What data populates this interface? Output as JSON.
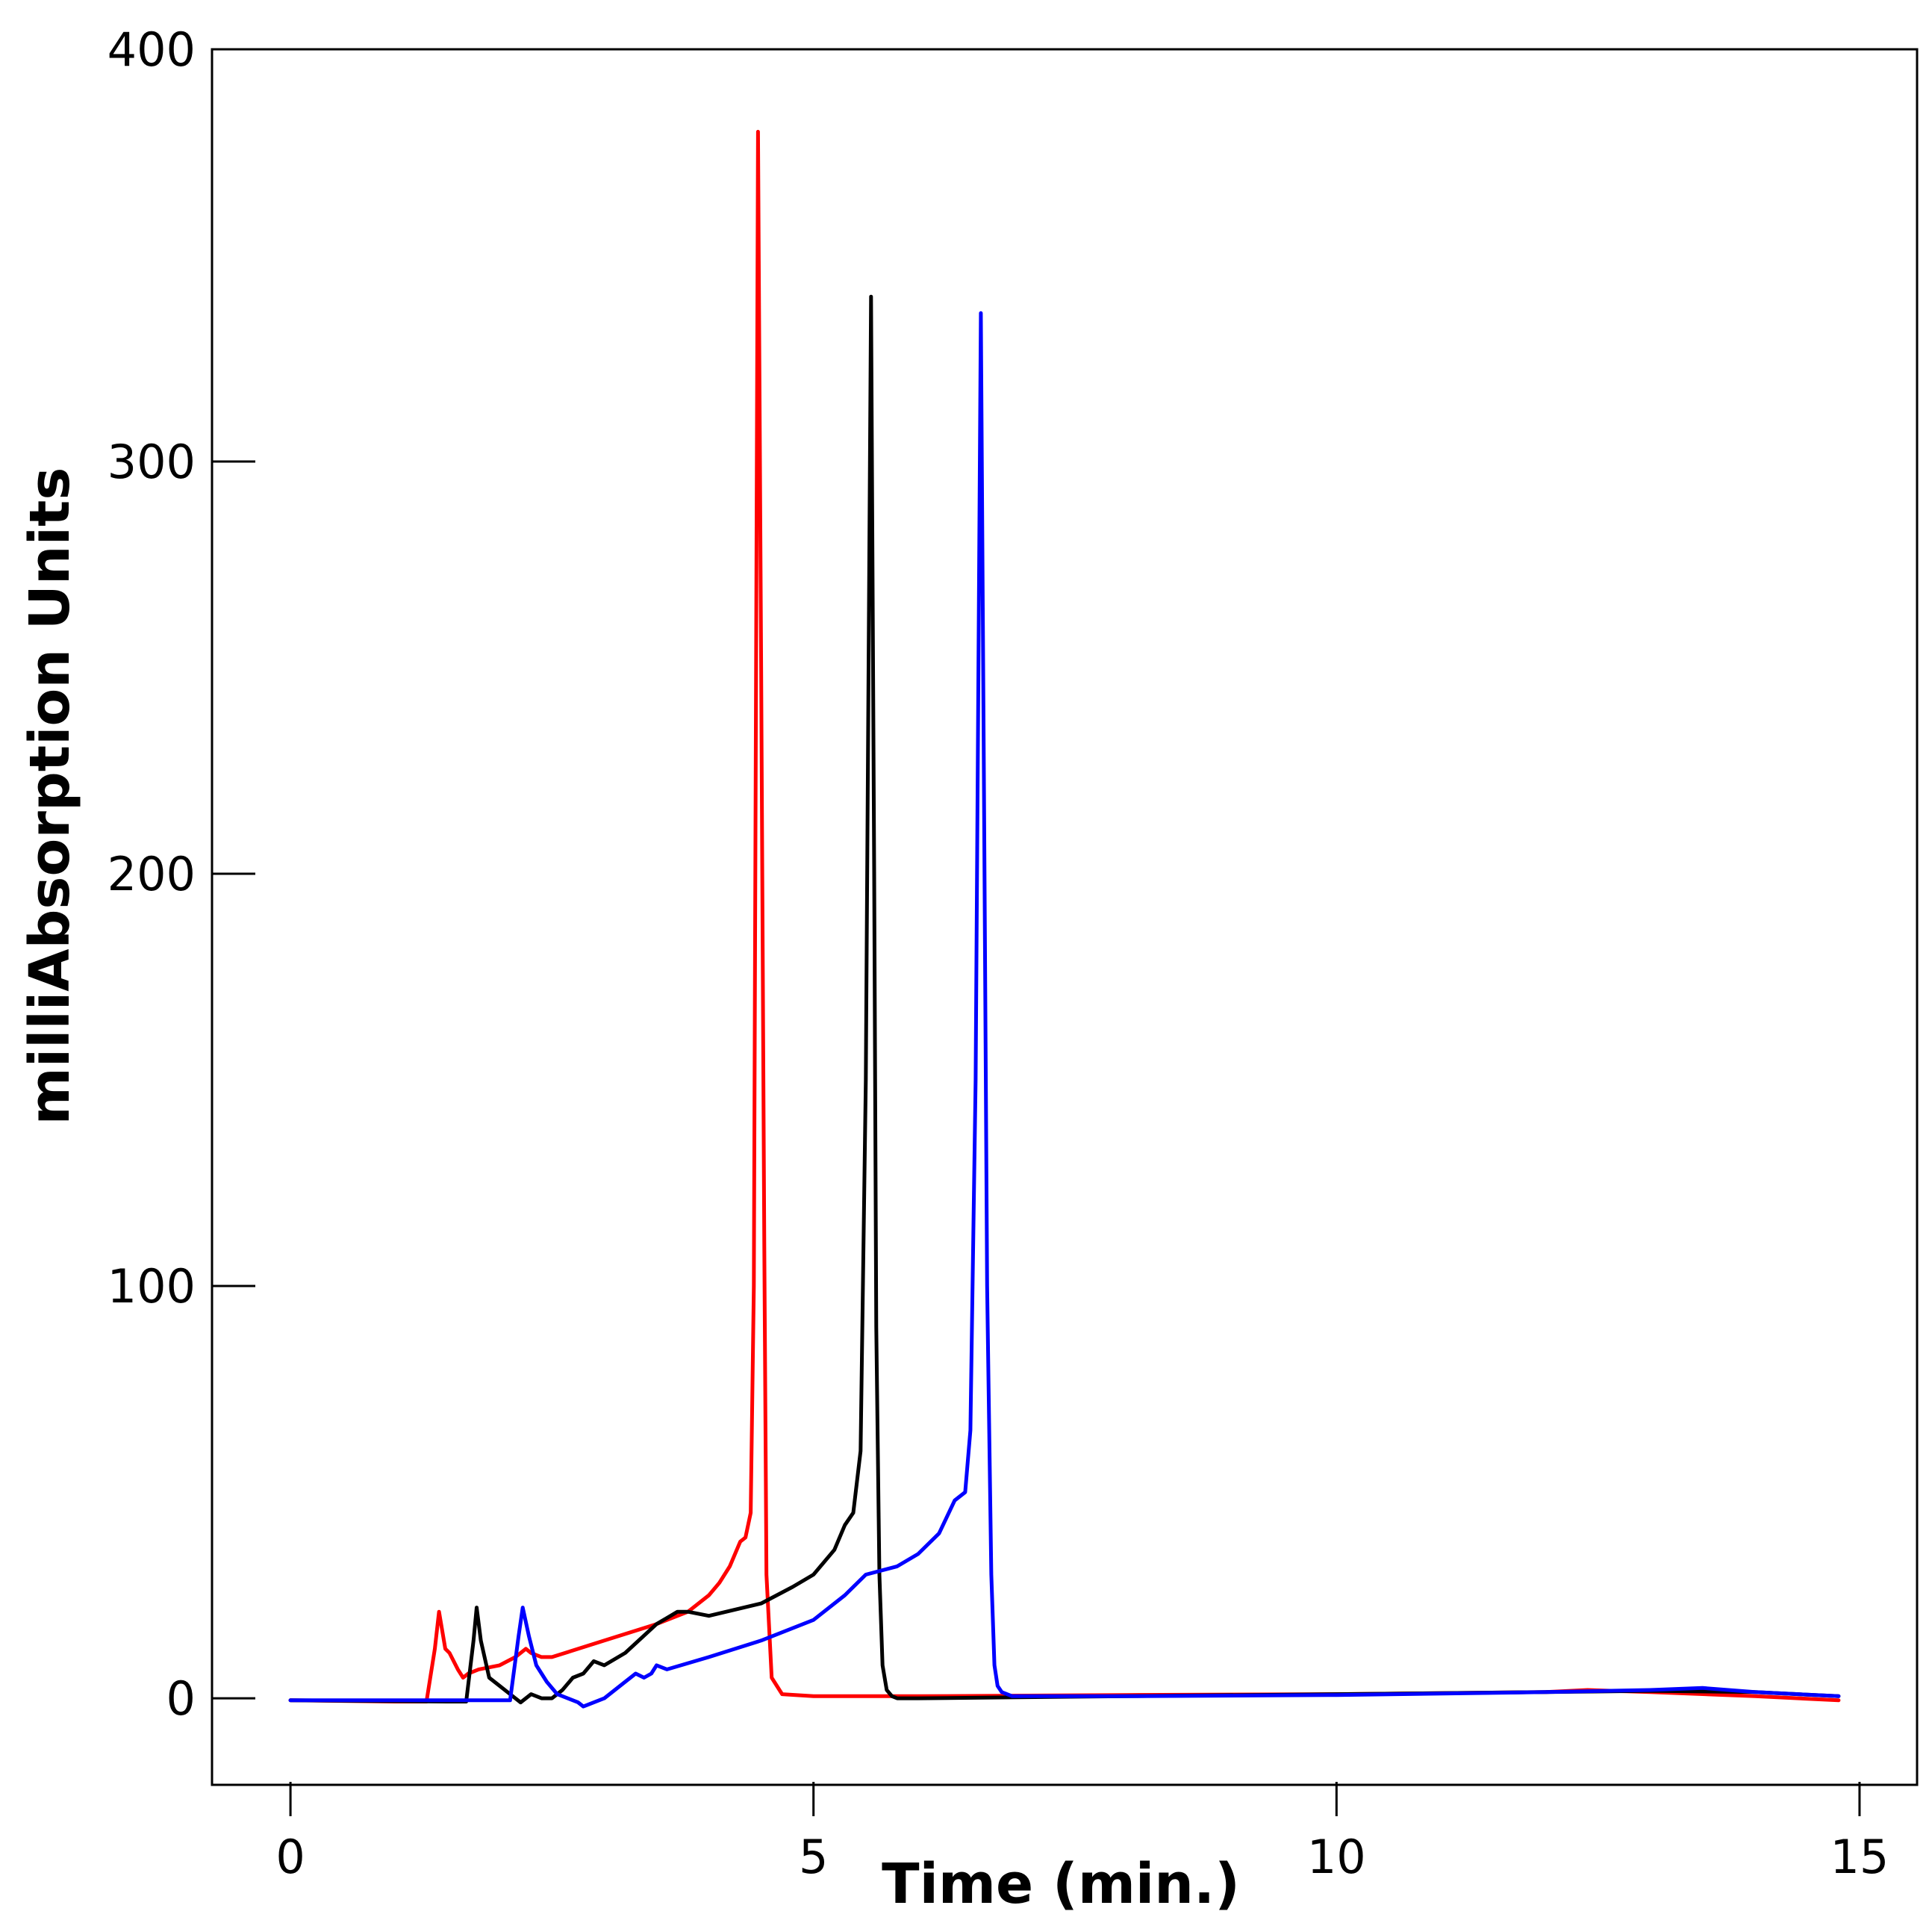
{
  "chart_data": {
    "type": "line",
    "title": "",
    "xlabel": "Time (min.)",
    "ylabel": "milliAbsorption Units",
    "xlim": [
      -0.75,
      15.55
    ],
    "ylim": [
      -21,
      400
    ],
    "xticks": [
      0,
      5,
      10,
      15
    ],
    "yticks": [
      0,
      100,
      200,
      300,
      400
    ],
    "grid": false,
    "legend": "none",
    "series": [
      {
        "color": "#ff0000",
        "x": [
          0,
          1.0,
          1.3,
          1.38,
          1.42,
          1.48,
          1.52,
          1.6,
          1.65,
          1.7,
          1.8,
          2.0,
          2.15,
          2.25,
          2.3,
          2.4,
          2.5,
          3.0,
          3.5,
          3.8,
          4.0,
          4.1,
          4.2,
          4.3,
          4.35,
          4.4,
          4.43,
          4.45,
          4.47,
          4.5,
          4.53,
          4.55,
          4.6,
          4.7,
          5.0,
          6.0,
          8.0,
          10.0,
          12.0,
          12.4,
          13.0,
          14.0,
          14.8
        ],
        "y": [
          -0.5,
          -0.8,
          -0.8,
          12,
          21,
          12,
          11,
          7,
          5,
          6,
          7,
          8,
          10,
          12,
          11,
          10,
          10,
          14,
          18,
          21,
          25,
          28,
          32,
          38,
          39,
          45,
          100,
          240,
          380,
          250,
          110,
          30,
          5,
          1,
          0.5,
          0.5,
          0.8,
          1.0,
          1.5,
          2,
          1.5,
          0.5,
          -0.5
        ]
      },
      {
        "color": "#000000",
        "x": [
          0,
          1.5,
          1.68,
          1.75,
          1.78,
          1.82,
          1.9,
          2.0,
          2.1,
          2.2,
          2.3,
          2.4,
          2.5,
          2.6,
          2.7,
          2.8,
          2.9,
          3.0,
          3.2,
          3.5,
          3.7,
          3.8,
          4.0,
          4.5,
          4.8,
          5.0,
          5.2,
          5.3,
          5.38,
          5.45,
          5.5,
          5.55,
          5.58,
          5.6,
          5.63,
          5.66,
          5.7,
          5.75,
          5.8,
          6.0,
          8.0,
          10.0,
          12.0,
          13.0,
          14.0,
          14.8
        ],
        "y": [
          -0.5,
          -0.8,
          -0.8,
          14,
          22,
          14,
          5,
          3,
          1,
          -1,
          1,
          0,
          0,
          2,
          5,
          6,
          9,
          8,
          11,
          18,
          21,
          21,
          20,
          23,
          27,
          30,
          36,
          42,
          45,
          60,
          150,
          340,
          200,
          90,
          30,
          8,
          2,
          0.5,
          0,
          0,
          0.5,
          1.0,
          1.5,
          1.8,
          1.5,
          0.5
        ]
      },
      {
        "color": "#0000ff",
        "x": [
          0,
          1.5,
          2.1,
          2.18,
          2.22,
          2.28,
          2.35,
          2.45,
          2.55,
          2.65,
          2.75,
          2.8,
          3.0,
          3.2,
          3.3,
          3.38,
          3.45,
          3.5,
          3.6,
          4.0,
          4.5,
          5.0,
          5.3,
          5.5,
          5.8,
          6.0,
          6.2,
          6.35,
          6.45,
          6.5,
          6.55,
          6.6,
          6.63,
          6.66,
          6.7,
          6.73,
          6.76,
          6.8,
          6.85,
          6.9,
          7.0,
          8.0,
          10.0,
          12.0,
          13.0,
          13.5,
          14.0,
          14.8
        ],
        "y": [
          -0.5,
          -0.5,
          -0.5,
          15,
          22,
          15,
          8,
          4,
          1,
          0,
          -1,
          -2,
          0,
          4,
          6,
          5,
          6,
          8,
          7,
          10,
          14,
          19,
          25,
          30,
          32,
          35,
          40,
          48,
          50,
          65,
          150,
          336,
          220,
          100,
          30,
          8,
          3,
          1.5,
          1,
          0.5,
          0.5,
          0.5,
          0.8,
          1.5,
          2.0,
          2.5,
          1.5,
          0.5
        ]
      }
    ]
  }
}
